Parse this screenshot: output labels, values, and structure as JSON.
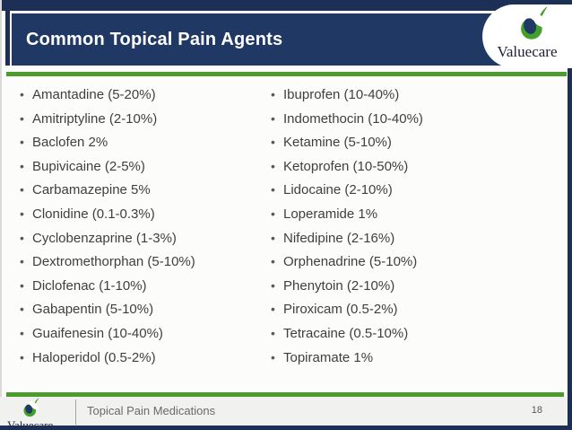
{
  "slide": {
    "title": "Common Topical Pain Agents",
    "brand": {
      "name": "Valuecare"
    },
    "columns": {
      "left": [
        "Amantadine (5-20%)",
        "Amitriptyline (2-10%)",
        "Baclofen 2%",
        "Bupivicaine (2-5%)",
        "Carbamazepine 5%",
        "Clonidine (0.1-0.3%)",
        "Cyclobenzaprine (1-3%)",
        "Dextromethorphan (5-10%)",
        "Diclofenac (1-10%)",
        "Gabapentin (5-10%)",
        "Guaifenesin (10-40%)",
        "Haloperidol (0.5-2%)"
      ],
      "right": [
        "Ibuprofen (10-40%)",
        "Indomethocin (10-40%)",
        "Ketamine (5-10%)",
        "Ketoprofen (10-50%)",
        "Lidocaine (2-10%)",
        "Loperamide 1%",
        "Nifedipine (2-16%)",
        "Orphenadrine (5-10%)",
        "Phenytoin (2-10%)",
        "Piroxicam (0.5-2%)",
        "Tetracaine (0.5-10%)",
        "Topiramate 1%"
      ]
    },
    "footer": {
      "label": "Topical Pain Medications",
      "page_number": "18"
    },
    "icons": {
      "logo": "valuecare-swoosh-icon",
      "bullet": "bullet-dot-icon"
    },
    "colors": {
      "header_navy": "#1f3864",
      "frame_navy": "#1c2f55",
      "accent_green": "#4c9c2d",
      "body_text": "#3f3f3f",
      "footer_text": "#6a6a6a",
      "footer_background": "#f1f1ef"
    }
  }
}
